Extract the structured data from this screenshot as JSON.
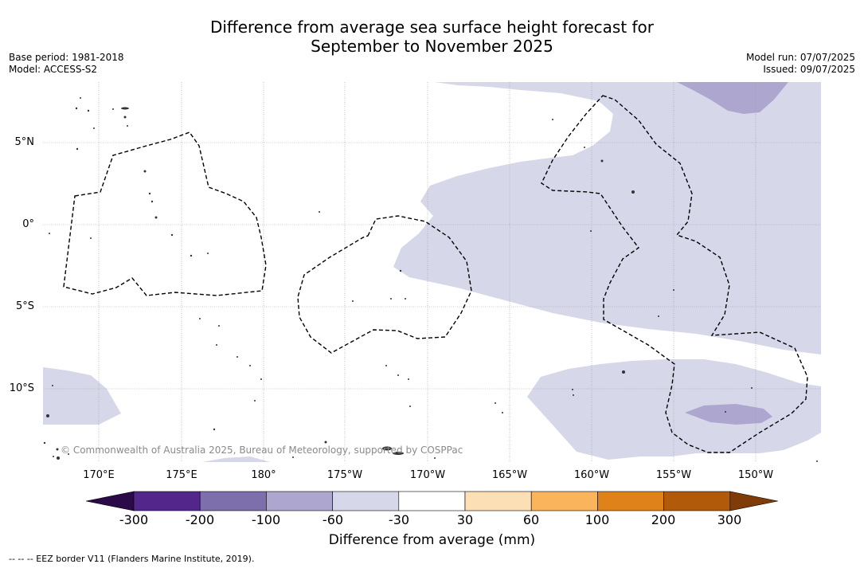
{
  "title": {
    "line1": "Difference from average sea surface height forecast for",
    "line2": "September to November 2025"
  },
  "meta": {
    "base_period": "Base period: 1981-2018",
    "model": "Model: ACCESS-S2",
    "model_run": "Model run: 07/07/2025",
    "issued": "Issued: 09/07/2025"
  },
  "map": {
    "latitude_labels": [
      "5°N",
      "0°",
      "5°S",
      "10°S"
    ],
    "longitude_labels": [
      "170°E",
      "175°E",
      "180°",
      "175°W",
      "170°W",
      "165°W",
      "160°W",
      "155°W",
      "150°W"
    ],
    "copyright": "© Commonwealth of Australia 2025, Bureau of Meteorology, supported by COSPPac",
    "gridlines": true,
    "eez_border_style": "dashed"
  },
  "colorbar": {
    "ticks": [
      "-300",
      "-200",
      "-100",
      "-60",
      "-30",
      "30",
      "60",
      "100",
      "200",
      "300"
    ],
    "colors": [
      "#53268c",
      "#7c6fab",
      "#ada7cf",
      "#d7d7ea",
      "#ffffff",
      "#fddfb5",
      "#f9b45c",
      "#e0821a",
      "#b15b0a"
    ],
    "under_color": "#2c0a4a",
    "over_color": "#7f3b08",
    "label": "Difference from average (mm)"
  },
  "footnote": "--  --  -- EEZ border V11 (Flanders Marine Institute, 2019)."
}
